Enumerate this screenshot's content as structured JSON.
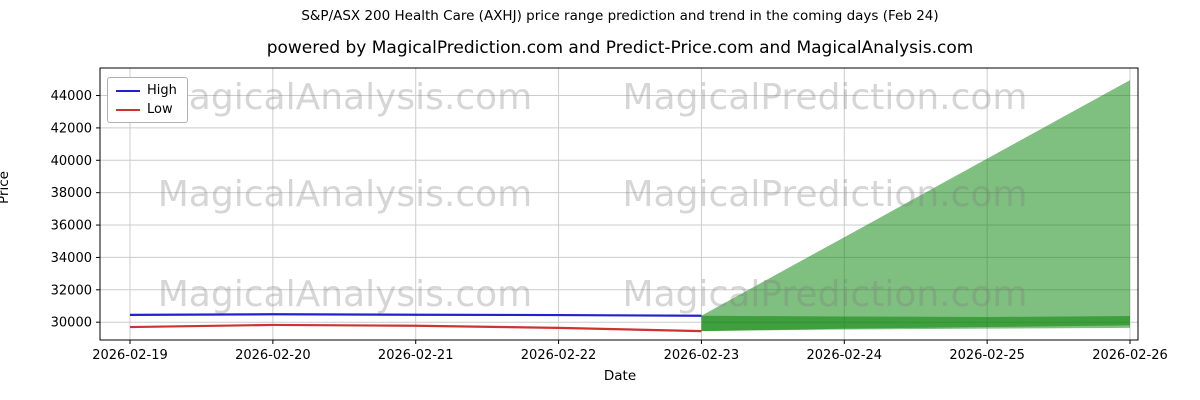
{
  "chart_data": {
    "type": "line",
    "title": "S&P/ASX 200 Health Care (AXHJ) price range prediction and trend in the coming days (Feb 24)",
    "subtitle": "powered by MagicalPrediction.com and Predict-Price.com and MagicalAnalysis.com",
    "xlabel": "Date",
    "ylabel": "Price",
    "x_categories": [
      "2026-02-19",
      "2026-02-20",
      "2026-02-21",
      "2026-02-22",
      "2026-02-23",
      "2026-02-24",
      "2026-02-25",
      "2026-02-26"
    ],
    "ylim": [
      28900,
      45700
    ],
    "ytick_values": [
      30000,
      32000,
      34000,
      36000,
      38000,
      40000,
      42000,
      44000
    ],
    "ytick_labels": [
      "30000",
      "32000",
      "34000",
      "36000",
      "38000",
      "40000",
      "42000",
      "44000"
    ],
    "grid": true,
    "grid_color": "#cccccc",
    "legend": {
      "position": "upper left",
      "entries": [
        "High",
        "Low"
      ]
    },
    "series": [
      {
        "name": "High",
        "color": "#2222cc",
        "x": [
          0,
          1,
          2,
          3,
          4
        ],
        "values": [
          30450,
          30490,
          30460,
          30440,
          30400
        ]
      },
      {
        "name": "Low",
        "color": "#cc3333",
        "x": [
          0,
          1,
          2,
          3,
          4
        ],
        "values": [
          29700,
          29830,
          29780,
          29650,
          29450
        ]
      }
    ],
    "bands": [
      {
        "name": "prediction-range-fan",
        "color": "#008000",
        "opacity": 0.5,
        "x": [
          4,
          5,
          6,
          7
        ],
        "upper": [
          30400,
          35250,
          40100,
          44950
        ],
        "lower": [
          29450,
          29600,
          29700,
          29800
        ]
      },
      {
        "name": "prediction-range-flat",
        "color": "#008000",
        "opacity": 0.5,
        "x": [
          4,
          5,
          6,
          7
        ],
        "upper": [
          30400,
          30350,
          30320,
          30380
        ],
        "lower": [
          29450,
          29550,
          29600,
          29650
        ]
      }
    ],
    "watermarks": {
      "texts": [
        "MagicalAnalysis.com",
        "MagicalPrediction.com"
      ],
      "color": "#808080",
      "opacity": 0.32
    }
  }
}
